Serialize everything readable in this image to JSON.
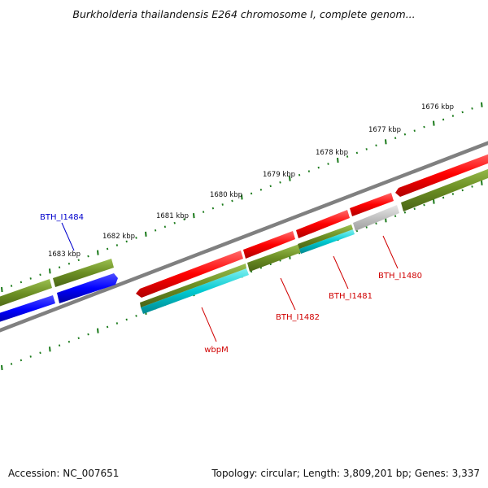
{
  "title": "Burkholderia thailandensis E264 chromosome I, complete genom...",
  "footer": {
    "accession": "Accession: NC_007651",
    "summary": "Topology: circular; Length: 3,809,201 bp; Genes: 3,337"
  },
  "ruler": {
    "unit": "kbp",
    "labels": [
      "1676 kbp",
      "1677 kbp",
      "1678 kbp",
      "1679 kbp",
      "1680 kbp",
      "1681 kbp",
      "1682 kbp",
      "1683 kbp"
    ]
  },
  "colors": {
    "forward_gene": "#ff0000",
    "reverse_gene": "#0000ff",
    "cds": "#6b8e23",
    "cds_alt": "#00c8d0",
    "pseudo": "#c0c0c0",
    "backbone": "#808080",
    "ticks": "#1a7a1a",
    "label_red": "#d00000",
    "label_blue": "#0000cc"
  },
  "gene_labels": [
    {
      "name": "BTH_I1484",
      "color": "label_blue"
    },
    {
      "name": "BTH_I1480",
      "color": "label_red"
    },
    {
      "name": "BTH_I1481",
      "color": "label_red"
    },
    {
      "name": "BTH_I1482",
      "color": "label_red"
    },
    {
      "name": "wbpM",
      "color": "label_red"
    }
  ]
}
